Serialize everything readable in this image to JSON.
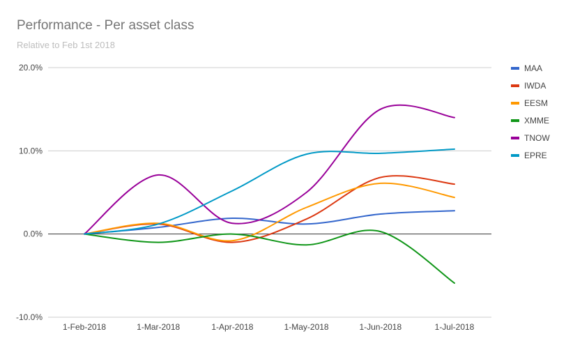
{
  "chart_data": {
    "type": "line",
    "title": "Performance - Per asset class",
    "subtitle": "Relative to Feb 1st 2018",
    "xlabel": "",
    "ylabel": "",
    "categories": [
      "1-Feb-2018",
      "1-Mar-2018",
      "1-Apr-2018",
      "1-May-2018",
      "1-Jun-2018",
      "1-Jul-2018"
    ],
    "y_ticks": [
      "-10.0%",
      "0.0%",
      "10.0%",
      "20.0%"
    ],
    "ylim": [
      -10,
      20
    ],
    "grid": true,
    "smooth": true,
    "legend_position": "right",
    "series": [
      {
        "name": "MAA",
        "color": "#3366cc",
        "values": [
          0,
          0.8,
          1.9,
          1.2,
          2.4,
          2.8
        ]
      },
      {
        "name": "IWDA",
        "color": "#dc3912",
        "values": [
          0,
          1.2,
          -1.0,
          1.8,
          6.8,
          6.0
        ]
      },
      {
        "name": "EESM",
        "color": "#ff9900",
        "values": [
          0,
          1.3,
          -0.8,
          3.2,
          6.1,
          4.4
        ]
      },
      {
        "name": "XMME",
        "color": "#109618",
        "values": [
          0,
          -1.0,
          0.0,
          -1.3,
          0.3,
          -5.9
        ]
      },
      {
        "name": "TNOW",
        "color": "#990099",
        "values": [
          0,
          7.1,
          1.3,
          5.0,
          15.0,
          14.0
        ]
      },
      {
        "name": "EPRE",
        "color": "#0099c6",
        "values": [
          0,
          1.2,
          5.2,
          9.6,
          9.7,
          10.2
        ]
      }
    ]
  }
}
